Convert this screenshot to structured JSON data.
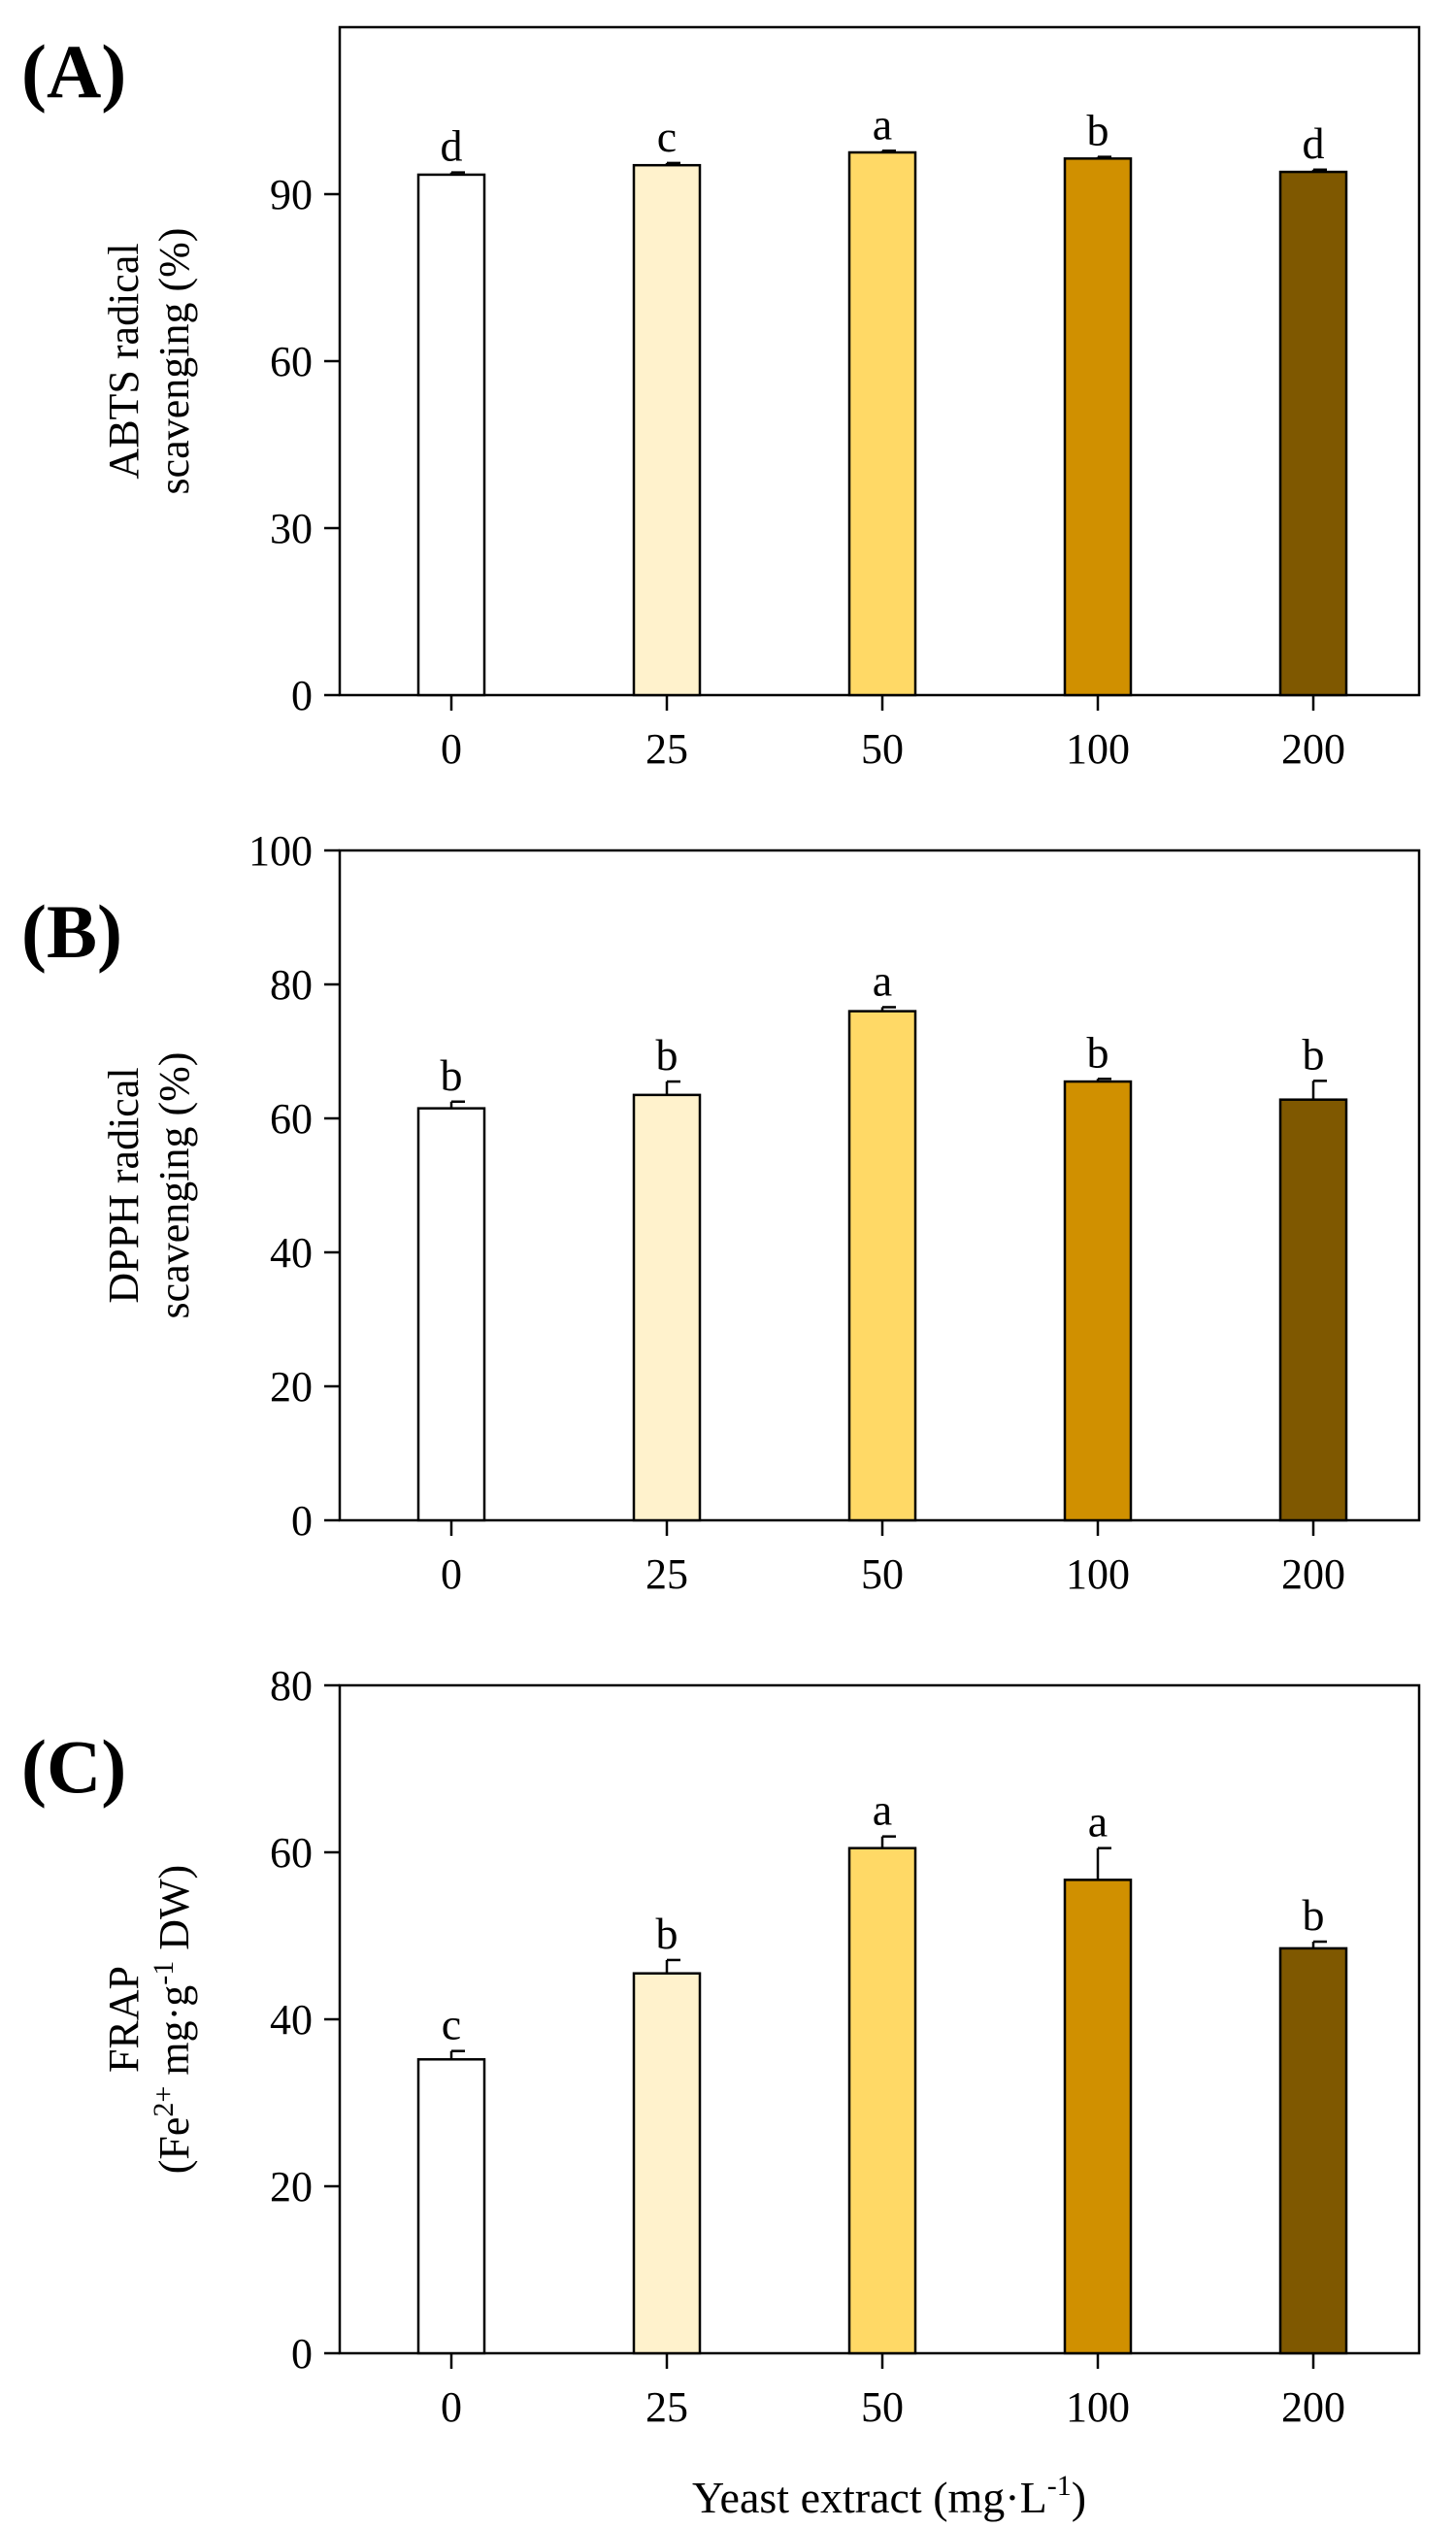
{
  "figure": {
    "xlabel_main": "Yeast extract (mg·L",
    "xlabel_sup": "-1",
    "xlabel_end": ")"
  },
  "chart_data": [
    {
      "type": "bar",
      "panel_label": "(A)",
      "ylabel_lines": [
        "ABTS radical",
        "scavenging (%)"
      ],
      "categories": [
        "0",
        "25",
        "50",
        "100",
        "200"
      ],
      "values": [
        93.5,
        95.2,
        97.5,
        96.4,
        94.0
      ],
      "errors": [
        0.4,
        0.4,
        0.3,
        0.3,
        0.4
      ],
      "letters": [
        "d",
        "c",
        "a",
        "b",
        "d"
      ],
      "ylim": [
        0,
        120
      ],
      "yticks": [
        "0",
        "30",
        "60",
        "90"
      ],
      "ytick_values": [
        0,
        30,
        60,
        90
      ],
      "colors": [
        "#ffffff",
        "#fff2cc",
        "#ffd966",
        "#d09000",
        "#7f5800"
      ]
    },
    {
      "type": "bar",
      "panel_label": "(B)",
      "ylabel_lines": [
        "DPPH radical",
        "scavenging (%)"
      ],
      "categories": [
        "0",
        "25",
        "50",
        "100",
        "200"
      ],
      "values": [
        61.5,
        63.5,
        76.0,
        65.5,
        62.8
      ],
      "errors": [
        1.0,
        2.0,
        0.6,
        0.4,
        2.8
      ],
      "letters": [
        "b",
        "b",
        "a",
        "b",
        "b"
      ],
      "ylim": [
        0,
        100
      ],
      "yticks": [
        "0",
        "20",
        "40",
        "60",
        "80",
        "100"
      ],
      "ytick_values": [
        0,
        20,
        40,
        60,
        80,
        100
      ],
      "colors": [
        "#ffffff",
        "#fff2cc",
        "#ffd966",
        "#d09000",
        "#7f5800"
      ]
    },
    {
      "type": "bar",
      "panel_label": "(C)",
      "ylabel_line1": "FRAP",
      "ylabel_line2_parts": [
        "(Fe",
        "2+",
        " mg·g",
        "-1",
        " DW)"
      ],
      "categories": [
        "0",
        "25",
        "50",
        "100",
        "200"
      ],
      "values": [
        35.2,
        45.5,
        60.5,
        56.7,
        48.5
      ],
      "errors": [
        1.0,
        1.6,
        1.4,
        3.8,
        0.8
      ],
      "letters": [
        "c",
        "b",
        "a",
        "a",
        "b"
      ],
      "ylim": [
        0,
        80
      ],
      "yticks": [
        "0",
        "20",
        "40",
        "60",
        "80"
      ],
      "ytick_values": [
        0,
        20,
        40,
        60,
        80
      ],
      "colors": [
        "#ffffff",
        "#fff2cc",
        "#ffd966",
        "#d09000",
        "#7f5800"
      ]
    }
  ]
}
